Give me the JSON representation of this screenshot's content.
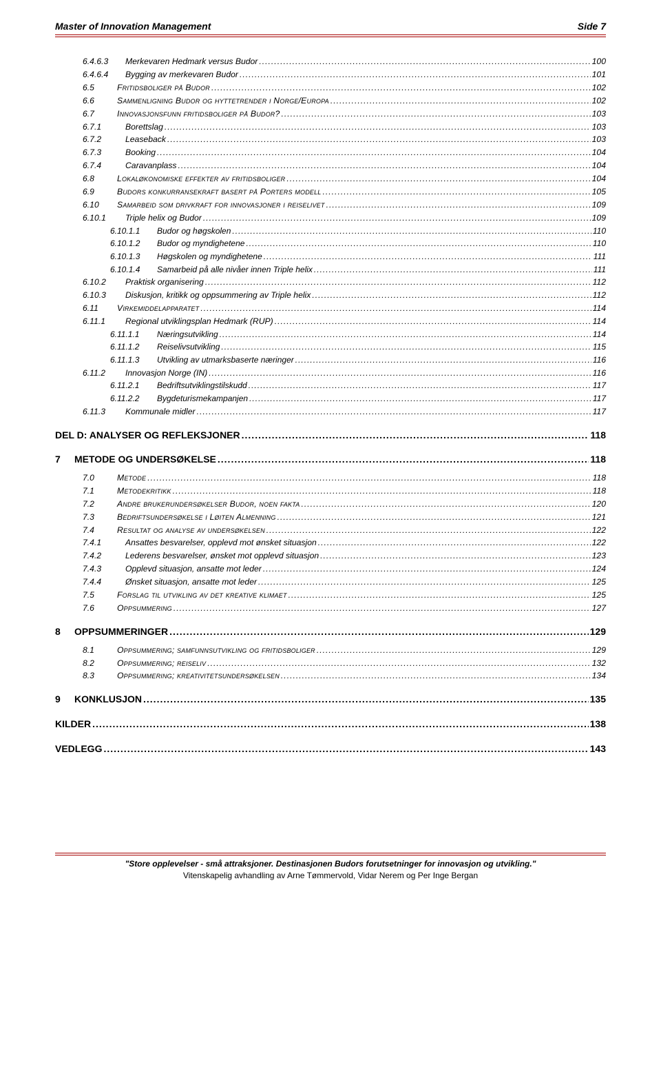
{
  "header": {
    "left": "Master of Innovation Management",
    "right": "Side 7"
  },
  "toc": [
    {
      "lvl": "3",
      "num": "6.4.6.3",
      "label": "Merkevaren Hedmark versus Budor",
      "pg": "100"
    },
    {
      "lvl": "3",
      "num": "6.4.6.4",
      "label": "Bygging av merkevaren Budor",
      "pg": "101"
    },
    {
      "lvl": "2s",
      "num": "6.5",
      "label": "Fritidsboliger på Budor",
      "pg": "102"
    },
    {
      "lvl": "2s",
      "num": "6.6",
      "label": "Sammenligning Budor og hyttetrender i Norge/Europa",
      "pg": "102"
    },
    {
      "lvl": "2s",
      "num": "6.7",
      "label": "Innovasjonsfunn fritidsboliger på Budor?",
      "pg": "103"
    },
    {
      "lvl": "2g",
      "num": "6.7.1",
      "label": "Borettslag",
      "pg": "103"
    },
    {
      "lvl": "2g",
      "num": "6.7.2",
      "label": "Leaseback",
      "pg": "103"
    },
    {
      "lvl": "2g",
      "num": "6.7.3",
      "label": "Booking",
      "pg": "104"
    },
    {
      "lvl": "2g",
      "num": "6.7.4",
      "label": "Caravanplass",
      "pg": "104"
    },
    {
      "lvl": "2s",
      "num": "6.8",
      "label": "Lokaløkonomiske effekter av fritidsboliger",
      "pg": "104"
    },
    {
      "lvl": "2s",
      "num": "6.9",
      "label": "Budors konkurransekraft basert på Porters modell",
      "pg": "105"
    },
    {
      "lvl": "2s",
      "num": "6.10",
      "label": "Samarbeid som drivkraft for innovasjoner i reiselivet",
      "pg": "109"
    },
    {
      "lvl": "2g",
      "num": "6.10.1",
      "label": "Triple helix og Budor",
      "pg": "109"
    },
    {
      "lvl": "4",
      "num": "6.10.1.1",
      "label": "Budor og høgskolen",
      "pg": "110"
    },
    {
      "lvl": "4",
      "num": "6.10.1.2",
      "label": "Budor og myndighetene",
      "pg": "110"
    },
    {
      "lvl": "4",
      "num": "6.10.1.3",
      "label": "Høgskolen og myndighetene",
      "pg": "111"
    },
    {
      "lvl": "4",
      "num": "6.10.1.4",
      "label": "Samarbeid på alle nivåer innen Triple helix",
      "pg": "111"
    },
    {
      "lvl": "2g",
      "num": "6.10.2",
      "label": "Praktisk organisering",
      "pg": "112"
    },
    {
      "lvl": "2g",
      "num": "6.10.3",
      "label": "Diskusjon, kritikk og oppsummering av Triple helix",
      "pg": "112"
    },
    {
      "lvl": "2s",
      "num": "6.11",
      "label": "Virkemiddelapparatet",
      "pg": "114"
    },
    {
      "lvl": "2g",
      "num": "6.11.1",
      "label": "Regional utviklingsplan Hedmark (RUP)",
      "pg": "114"
    },
    {
      "lvl": "4",
      "num": "6.11.1.1",
      "label": "Næringsutvikling",
      "pg": "114"
    },
    {
      "lvl": "4",
      "num": "6.11.1.2",
      "label": "Reiselivsutvikling",
      "pg": "115"
    },
    {
      "lvl": "4",
      "num": "6.11.1.3",
      "label": "Utvikling av utmarksbaserte næringer",
      "pg": "116"
    },
    {
      "lvl": "2g",
      "num": "6.11.2",
      "label": "Innovasjon Norge (IN)",
      "pg": "116"
    },
    {
      "lvl": "4",
      "num": "6.11.2.1",
      "label": "Bedriftsutviklingstilskudd",
      "pg": "117"
    },
    {
      "lvl": "4",
      "num": "6.11.2.2",
      "label": "Bygdeturismekampanjen",
      "pg": "117"
    },
    {
      "lvl": "2g",
      "num": "6.11.3",
      "label": "Kommunale midler",
      "pg": "117"
    },
    {
      "lvl": "1",
      "num": "",
      "label": "DEL D: ANALYSER OG REFLEKSJONER",
      "pg": "118"
    },
    {
      "lvl": "1",
      "num": "7",
      "label": "METODE OG UNDERSØKELSE",
      "pg": "118"
    },
    {
      "lvl": "2s",
      "num": "7.0",
      "label": "Metode",
      "pg": "118"
    },
    {
      "lvl": "2s",
      "num": "7.1",
      "label": "Metodekritikk",
      "pg": "118"
    },
    {
      "lvl": "2s",
      "num": "7.2",
      "label": "Andre brukerundersøkelser Budor, noen fakta",
      "pg": "120"
    },
    {
      "lvl": "2s",
      "num": "7.3",
      "label": "Bedriftsundersøkelse i Løiten Almenning",
      "pg": "121"
    },
    {
      "lvl": "2s",
      "num": "7.4",
      "label": "Resultat og analyse av undersøkelsen",
      "pg": "122"
    },
    {
      "lvl": "2g",
      "num": "7.4.1",
      "label": "Ansattes besvarelser, opplevd mot ønsket situasjon",
      "pg": "122"
    },
    {
      "lvl": "2g",
      "num": "7.4.2",
      "label": "Lederens besvarelser, ønsket mot opplevd situasjon",
      "pg": "123"
    },
    {
      "lvl": "2g",
      "num": "7.4.3",
      "label": "Opplevd situasjon, ansatte mot leder",
      "pg": "124"
    },
    {
      "lvl": "2g",
      "num": "7.4.4",
      "label": "Ønsket situasjon, ansatte mot leder",
      "pg": "125"
    },
    {
      "lvl": "2s",
      "num": "7.5",
      "label": "Forslag til utvikling av det kreative klimaet",
      "pg": "125"
    },
    {
      "lvl": "2s",
      "num": "7.6",
      "label": "Oppsummering",
      "pg": "127"
    },
    {
      "lvl": "1",
      "num": "8",
      "label": "OPPSUMMERINGER",
      "pg": "129"
    },
    {
      "lvl": "2s",
      "num": "8.1",
      "label": "Oppsummering; samfunnsutvikling og fritidsboliger",
      "pg": "129"
    },
    {
      "lvl": "2s",
      "num": "8.2",
      "label": "Oppsummering; reiseliv",
      "pg": "132"
    },
    {
      "lvl": "2s",
      "num": "8.3",
      "label": "Oppsummering; kreativitetsundersøkelsen",
      "pg": "134"
    },
    {
      "lvl": "1",
      "num": "9",
      "label": "KONKLUSJON",
      "pg": "135"
    },
    {
      "lvl": "1",
      "num": "",
      "label": "KILDER",
      "pg": "138"
    },
    {
      "lvl": "1",
      "num": "",
      "label": "VEDLEGG",
      "pg": "143"
    }
  ],
  "footer": {
    "line1": "\"Store opplevelser - små attraksjoner. Destinasjonen Budors forutsetninger for innovasjon og utvikling.\"",
    "line2": "Vitenskapelig avhandling av Arne Tømmervold, Vidar Nerem og Per Inge Bergan"
  }
}
